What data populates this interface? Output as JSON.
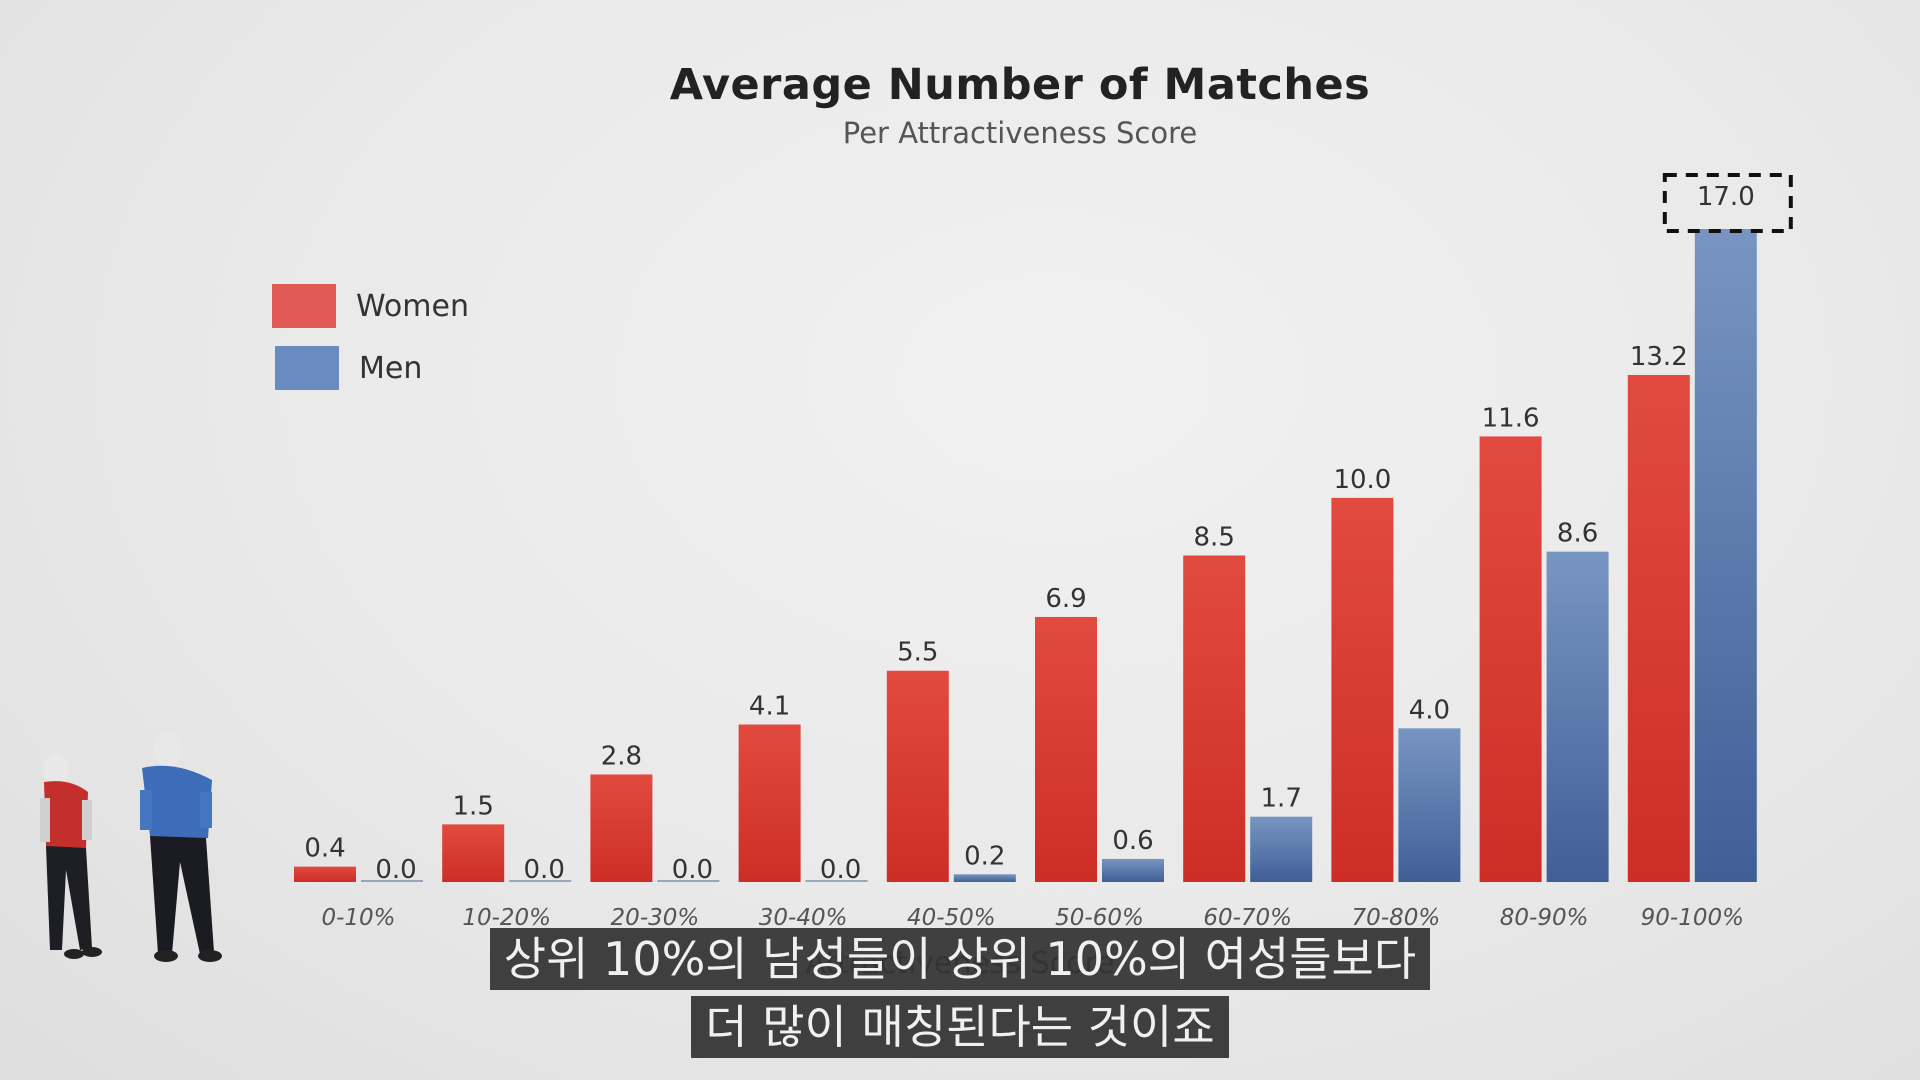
{
  "chart_data": {
    "type": "bar",
    "title": "Average Number of Matches",
    "subtitle": "Per Attractiveness Score",
    "xlabel": "Attractiveness Score",
    "ylabel": "",
    "categories": [
      "0-10%",
      "10-20%",
      "20-30%",
      "30-40%",
      "40-50%",
      "50-60%",
      "60-70%",
      "70-80%",
      "80-90%",
      "90-100%"
    ],
    "series": [
      {
        "name": "Women",
        "color": "#d6352b",
        "values": [
          0.4,
          1.5,
          2.8,
          4.1,
          5.5,
          6.9,
          8.5,
          10.0,
          11.6,
          13.2
        ]
      },
      {
        "name": "Men",
        "color": "#4a6aa0",
        "values": [
          0.0,
          0.0,
          0.0,
          0.0,
          0.2,
          0.6,
          1.7,
          4.0,
          8.6,
          17.0
        ]
      }
    ],
    "value_labels": {
      "Women": [
        "0.4",
        "1.5",
        "2.8",
        "4.1",
        "5.5",
        "6.9",
        "8.5",
        "10.0",
        "11.6",
        "13.2"
      ],
      "Men": [
        "0.0",
        "0.0",
        "0.0",
        "0.0",
        "0.2",
        "0.6",
        "1.7",
        "4.0",
        "8.6",
        "17.0"
      ]
    },
    "highlighted": {
      "series": "Men",
      "category": "90-100%"
    },
    "ylim": [
      0,
      17.5
    ],
    "grid": false,
    "legend_position": "top-left"
  },
  "legend": [
    {
      "label": "Women",
      "color": "#e25a55"
    },
    {
      "label": "Men",
      "color": "#6a8bbf"
    }
  ],
  "subtitles": [
    "상위 10%의 남성들이 상위 10%의 여성들보다",
    "더 많이 매칭된다는 것이죠"
  ]
}
